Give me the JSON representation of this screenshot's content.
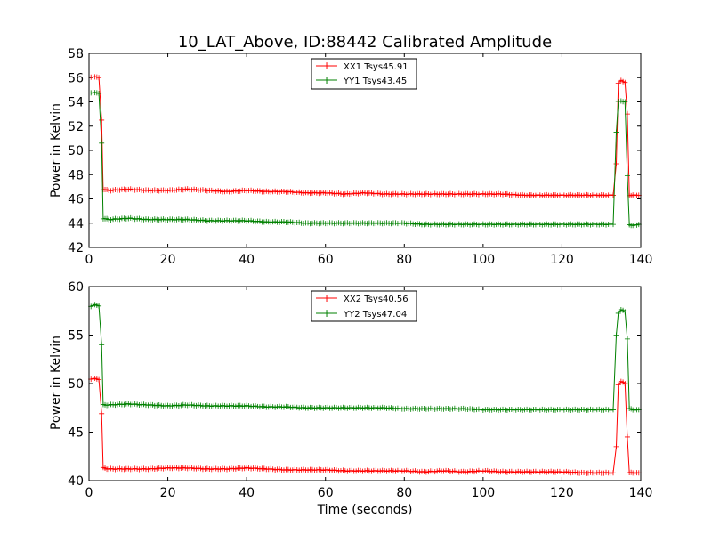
{
  "chart_data": [
    {
      "type": "line",
      "title": "10_LAT_Above, ID:88442 Calibrated Amplitude",
      "xlabel": "",
      "ylabel": "Power in Kelvin",
      "xlim": [
        0,
        140
      ],
      "ylim": [
        42,
        58
      ],
      "xticks": [
        0,
        20,
        40,
        60,
        80,
        100,
        120,
        140
      ],
      "yticks": [
        42,
        44,
        46,
        48,
        50,
        52,
        54,
        56,
        58
      ],
      "legend_position": "top-center",
      "grid": false,
      "series": [
        {
          "name": "XX1 Tsys45.91",
          "color": "#ff0000",
          "marker": "+",
          "points": [
            [
              0.5,
              56.0
            ],
            [
              1.5,
              56.1
            ],
            [
              2.5,
              56.0
            ],
            [
              3.2,
              52.5
            ],
            [
              3.6,
              46.8
            ],
            [
              5,
              46.7
            ],
            [
              10,
              46.8
            ],
            [
              15,
              46.7
            ],
            [
              20,
              46.7
            ],
            [
              25,
              46.8
            ],
            [
              30,
              46.7
            ],
            [
              35,
              46.6
            ],
            [
              40,
              46.7
            ],
            [
              45,
              46.6
            ],
            [
              50,
              46.6
            ],
            [
              55,
              46.5
            ],
            [
              60,
              46.5
            ],
            [
              65,
              46.4
            ],
            [
              70,
              46.5
            ],
            [
              75,
              46.4
            ],
            [
              80,
              46.4
            ],
            [
              85,
              46.4
            ],
            [
              90,
              46.4
            ],
            [
              95,
              46.4
            ],
            [
              100,
              46.4
            ],
            [
              105,
              46.4
            ],
            [
              110,
              46.3
            ],
            [
              115,
              46.3
            ],
            [
              120,
              46.3
            ],
            [
              125,
              46.3
            ],
            [
              130,
              46.3
            ],
            [
              133,
              46.3
            ],
            [
              133.8,
              48.9
            ],
            [
              134.3,
              55.5
            ],
            [
              135,
              55.8
            ],
            [
              136,
              55.6
            ],
            [
              136.6,
              53.0
            ],
            [
              137.1,
              46.3
            ],
            [
              138,
              46.3
            ],
            [
              139.5,
              46.3
            ]
          ]
        },
        {
          "name": "YY1 Tsys43.45",
          "color": "#008000",
          "marker": "+",
          "points": [
            [
              0.5,
              54.7
            ],
            [
              1.5,
              54.8
            ],
            [
              2.5,
              54.7
            ],
            [
              3.2,
              50.6
            ],
            [
              3.6,
              44.4
            ],
            [
              5,
              44.3
            ],
            [
              10,
              44.4
            ],
            [
              15,
              44.3
            ],
            [
              20,
              44.3
            ],
            [
              25,
              44.3
            ],
            [
              30,
              44.2
            ],
            [
              35,
              44.2
            ],
            [
              40,
              44.2
            ],
            [
              45,
              44.1
            ],
            [
              50,
              44.1
            ],
            [
              55,
              44.0
            ],
            [
              60,
              44.0
            ],
            [
              65,
              44.0
            ],
            [
              70,
              44.0
            ],
            [
              75,
              44.0
            ],
            [
              80,
              44.0
            ],
            [
              85,
              43.9
            ],
            [
              90,
              43.9
            ],
            [
              95,
              43.9
            ],
            [
              100,
              43.9
            ],
            [
              105,
              43.9
            ],
            [
              110,
              43.9
            ],
            [
              115,
              43.9
            ],
            [
              120,
              43.9
            ],
            [
              125,
              43.9
            ],
            [
              130,
              43.9
            ],
            [
              133,
              43.9
            ],
            [
              133.8,
              51.5
            ],
            [
              134.3,
              54.0
            ],
            [
              135,
              54.1
            ],
            [
              136,
              54.0
            ],
            [
              136.6,
              47.9
            ],
            [
              137.1,
              43.9
            ],
            [
              138,
              43.8
            ],
            [
              139.5,
              43.9
            ]
          ]
        }
      ]
    },
    {
      "type": "line",
      "title": "",
      "xlabel": "Time (seconds)",
      "ylabel": "Power in Kelvin",
      "xlim": [
        0,
        140
      ],
      "ylim": [
        40,
        60
      ],
      "xticks": [
        0,
        20,
        40,
        60,
        80,
        100,
        120,
        140
      ],
      "yticks": [
        40,
        45,
        50,
        55,
        60
      ],
      "legend_position": "top-center",
      "grid": false,
      "series": [
        {
          "name": "XX2 Tsys40.56",
          "color": "#ff0000",
          "marker": "+",
          "points": [
            [
              0.5,
              50.5
            ],
            [
              1.5,
              50.5
            ],
            [
              2.5,
              50.4
            ],
            [
              3.2,
              46.9
            ],
            [
              3.6,
              41.3
            ],
            [
              5,
              41.2
            ],
            [
              10,
              41.2
            ],
            [
              15,
              41.2
            ],
            [
              20,
              41.3
            ],
            [
              25,
              41.3
            ],
            [
              30,
              41.2
            ],
            [
              35,
              41.2
            ],
            [
              40,
              41.3
            ],
            [
              45,
              41.2
            ],
            [
              50,
              41.1
            ],
            [
              55,
              41.1
            ],
            [
              60,
              41.1
            ],
            [
              65,
              41.0
            ],
            [
              70,
              41.0
            ],
            [
              75,
              41.0
            ],
            [
              80,
              41.0
            ],
            [
              85,
              40.9
            ],
            [
              90,
              41.0
            ],
            [
              95,
              40.9
            ],
            [
              100,
              41.0
            ],
            [
              105,
              40.9
            ],
            [
              110,
              40.9
            ],
            [
              115,
              40.9
            ],
            [
              120,
              40.9
            ],
            [
              125,
              40.8
            ],
            [
              130,
              40.8
            ],
            [
              133,
              40.8
            ],
            [
              133.8,
              43.5
            ],
            [
              134.3,
              49.9
            ],
            [
              135,
              50.2
            ],
            [
              136,
              50.0
            ],
            [
              136.6,
              44.5
            ],
            [
              137.1,
              40.8
            ],
            [
              138,
              40.8
            ],
            [
              139.5,
              40.8
            ]
          ]
        },
        {
          "name": "YY2 Tsys47.04",
          "color": "#008000",
          "marker": "+",
          "points": [
            [
              0.5,
              58.0
            ],
            [
              1.5,
              58.1
            ],
            [
              2.5,
              58.0
            ],
            [
              3.2,
              54.0
            ],
            [
              3.6,
              47.8
            ],
            [
              5,
              47.8
            ],
            [
              10,
              47.9
            ],
            [
              15,
              47.8
            ],
            [
              20,
              47.7
            ],
            [
              25,
              47.8
            ],
            [
              30,
              47.7
            ],
            [
              35,
              47.7
            ],
            [
              40,
              47.7
            ],
            [
              45,
              47.6
            ],
            [
              50,
              47.6
            ],
            [
              55,
              47.5
            ],
            [
              60,
              47.5
            ],
            [
              65,
              47.5
            ],
            [
              70,
              47.5
            ],
            [
              75,
              47.5
            ],
            [
              80,
              47.4
            ],
            [
              85,
              47.4
            ],
            [
              90,
              47.4
            ],
            [
              95,
              47.4
            ],
            [
              100,
              47.3
            ],
            [
              105,
              47.3
            ],
            [
              110,
              47.3
            ],
            [
              115,
              47.3
            ],
            [
              120,
              47.3
            ],
            [
              125,
              47.3
            ],
            [
              130,
              47.3
            ],
            [
              133,
              47.3
            ],
            [
              133.8,
              55.0
            ],
            [
              134.3,
              57.3
            ],
            [
              135,
              57.6
            ],
            [
              136,
              57.4
            ],
            [
              136.6,
              54.6
            ],
            [
              137.1,
              47.4
            ],
            [
              138,
              47.3
            ],
            [
              139.5,
              47.3
            ]
          ]
        }
      ]
    }
  ]
}
